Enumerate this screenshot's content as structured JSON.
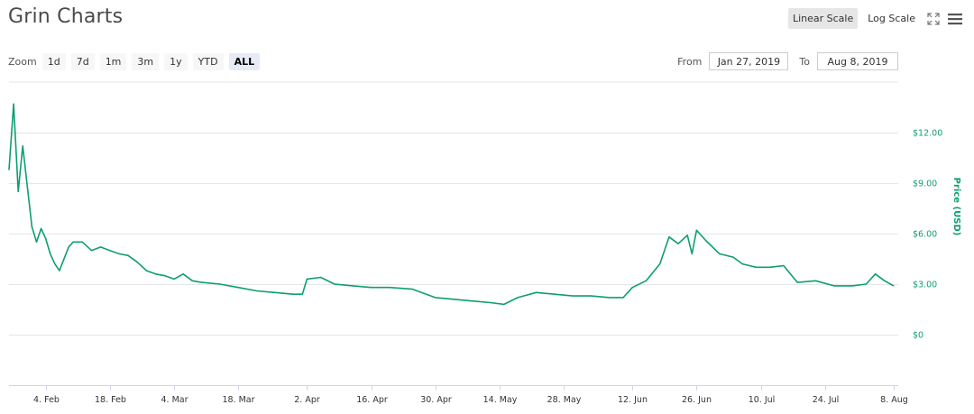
{
  "header": {
    "title": "Grin Charts",
    "linear_scale_label": "Linear Scale",
    "log_scale_label": "Log Scale",
    "fullscreen_icon": "fullscreen-icon",
    "menu_icon": "menu-icon"
  },
  "zoom": {
    "label": "Zoom",
    "buttons": [
      "1d",
      "7d",
      "1m",
      "3m",
      "1y",
      "YTD",
      "ALL"
    ],
    "active": "ALL"
  },
  "range": {
    "from_label": "From",
    "from_value": "Jan 27, 2019",
    "to_label": "To",
    "to_value": "Aug 8, 2019"
  },
  "colors": {
    "line": "#0d9e72",
    "grid": "#e6e6e6",
    "axis_text": "#333333",
    "y_axis_text": "#0d9e72"
  },
  "chart_data": {
    "type": "line",
    "title": "",
    "xlabel": "",
    "ylabel": "Price (USD)",
    "scale": "linear",
    "grid": true,
    "ylim": [
      -3,
      15
    ],
    "yticks": [
      0,
      3,
      6,
      9,
      12
    ],
    "ytick_labels": [
      "$0",
      "$3.00",
      "$6.00",
      "$9.00",
      "$12.00"
    ],
    "xlim": [
      "2019-01-27",
      "2019-08-09"
    ],
    "xticks": [
      "2019-02-04",
      "2019-02-18",
      "2019-03-04",
      "2019-03-18",
      "2019-04-02",
      "2019-04-16",
      "2019-04-30",
      "2019-05-14",
      "2019-05-28",
      "2019-06-12",
      "2019-06-26",
      "2019-07-10",
      "2019-07-24",
      "2019-08-08"
    ],
    "xtick_labels": [
      "4. Feb",
      "18. Feb",
      "4. Mar",
      "18. Mar",
      "2. Apr",
      "16. Apr",
      "30. Apr",
      "14. May",
      "28. May",
      "12. Jun",
      "26. Jun",
      "10. Jul",
      "24. Jul",
      "8. Aug"
    ],
    "series": [
      {
        "name": "",
        "x": [
          "2019-01-27",
          "2019-01-28",
          "2019-01-29",
          "2019-01-30",
          "2019-01-31",
          "2019-02-01",
          "2019-02-02",
          "2019-02-03",
          "2019-02-04",
          "2019-02-05",
          "2019-02-06",
          "2019-02-07",
          "2019-02-08",
          "2019-02-09",
          "2019-02-10",
          "2019-02-12",
          "2019-02-14",
          "2019-02-16",
          "2019-02-18",
          "2019-02-20",
          "2019-02-22",
          "2019-02-24",
          "2019-02-26",
          "2019-02-28",
          "2019-03-02",
          "2019-03-04",
          "2019-03-06",
          "2019-03-08",
          "2019-03-10",
          "2019-03-14",
          "2019-03-18",
          "2019-03-22",
          "2019-03-26",
          "2019-03-30",
          "2019-04-01",
          "2019-04-02",
          "2019-04-05",
          "2019-04-08",
          "2019-04-12",
          "2019-04-16",
          "2019-04-20",
          "2019-04-25",
          "2019-04-30",
          "2019-05-04",
          "2019-05-08",
          "2019-05-12",
          "2019-05-15",
          "2019-05-18",
          "2019-05-22",
          "2019-05-26",
          "2019-05-30",
          "2019-06-03",
          "2019-06-07",
          "2019-06-10",
          "2019-06-12",
          "2019-06-15",
          "2019-06-18",
          "2019-06-20",
          "2019-06-22",
          "2019-06-24",
          "2019-06-25",
          "2019-06-26",
          "2019-06-28",
          "2019-07-01",
          "2019-07-04",
          "2019-07-06",
          "2019-07-09",
          "2019-07-12",
          "2019-07-15",
          "2019-07-18",
          "2019-07-22",
          "2019-07-26",
          "2019-07-30",
          "2019-08-02",
          "2019-08-04",
          "2019-08-06",
          "2019-08-08"
        ],
        "y": [
          9.8,
          13.7,
          8.5,
          11.2,
          8.8,
          6.4,
          5.5,
          6.3,
          5.7,
          4.8,
          4.2,
          3.8,
          4.5,
          5.2,
          5.5,
          5.5,
          5.0,
          5.2,
          5.0,
          4.8,
          4.7,
          4.3,
          3.8,
          3.6,
          3.5,
          3.3,
          3.6,
          3.2,
          3.1,
          3.0,
          2.8,
          2.6,
          2.5,
          2.4,
          2.4,
          3.3,
          3.4,
          3.0,
          2.9,
          2.8,
          2.8,
          2.7,
          2.2,
          2.1,
          2.0,
          1.9,
          1.8,
          2.2,
          2.5,
          2.4,
          2.3,
          2.3,
          2.2,
          2.2,
          2.8,
          3.2,
          4.2,
          5.8,
          5.4,
          5.9,
          4.8,
          6.2,
          5.6,
          4.8,
          4.6,
          4.2,
          4.0,
          4.0,
          4.1,
          3.1,
          3.2,
          2.9,
          2.9,
          3.0,
          3.6,
          3.2,
          2.9
        ]
      }
    ]
  }
}
